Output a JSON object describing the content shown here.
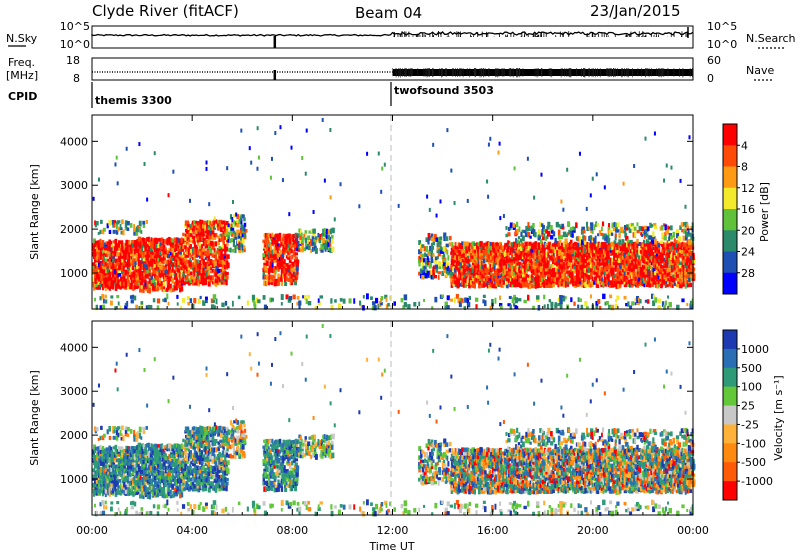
{
  "header": {
    "station": "Clyde River (fitACF)",
    "beam": "Beam 04",
    "date": "23/Jan/2015"
  },
  "noise_panel": {
    "left_label": "N.Sky",
    "right_label": "N.Search",
    "left_ticks": [
      "10^5",
      "10^0"
    ],
    "right_ticks": [
      "10^5",
      "10^0"
    ]
  },
  "freq_panel": {
    "left_label_line1": "Freq.",
    "left_label_line2": "[MHz]",
    "right_label": "Nave",
    "left_ticks": [
      "18",
      "8"
    ],
    "right_ticks": [
      "60",
      "0"
    ]
  },
  "cpid": {
    "label": "CPID",
    "modes": [
      {
        "name": "themis 3300",
        "start_hour": 0
      },
      {
        "name": "twofsound 3503",
        "start_hour": 12
      }
    ]
  },
  "time_axis": {
    "label": "Time UT",
    "ticks": [
      "00:00",
      "04:00",
      "08:00",
      "12:00",
      "16:00",
      "20:00",
      "00:00"
    ]
  },
  "chart_data": [
    {
      "type": "heatmap",
      "name": "power",
      "ylabel": "Slant Range [km]",
      "yticks": [
        1000,
        2000,
        3000,
        4000
      ],
      "ylim": [
        180,
        4600
      ],
      "xlim_hours": [
        0,
        24
      ],
      "colorbar": {
        "label": "Power [dB]",
        "ticks": [
          "4",
          "8",
          "12",
          "16",
          "20",
          "24",
          "28"
        ],
        "colors": [
          "#0000ff",
          "#1e50b4",
          "#2a8a6a",
          "#5fc23a",
          "#f2ea2a",
          "#ff9a14",
          "#ff4a08",
          "#ff0000"
        ]
      }
    },
    {
      "type": "heatmap",
      "name": "velocity",
      "ylabel": "Slant Range [km]",
      "yticks": [
        1000,
        2000,
        3000,
        4000
      ],
      "ylim": [
        180,
        4600
      ],
      "xlim_hours": [
        0,
        24
      ],
      "colorbar": {
        "label": "Velocity [m s⁻¹]",
        "ticks": [
          "1000",
          "500",
          "100",
          "25",
          "-25",
          "-100",
          "-500",
          "-1000"
        ],
        "colors": [
          "#1e3ab0",
          "#2a6fb4",
          "#2e9a78",
          "#62c83a",
          "#c8c8c8",
          "#ffb23a",
          "#ff8a10",
          "#ff5a08",
          "#ff0000"
        ]
      }
    }
  ]
}
